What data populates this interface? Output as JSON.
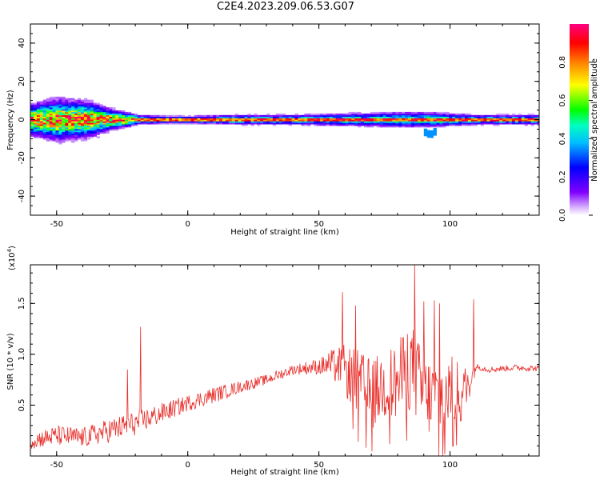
{
  "page": {
    "title": "C2E4.2023.209.06.53.G07"
  },
  "colorbar": {
    "label": "Normalized spectral amplitude",
    "ticks": [
      "0.0",
      "0.2",
      "0.4",
      "0.6",
      "0.8"
    ],
    "tick_values": [
      0.0,
      0.2,
      0.4,
      0.6,
      0.8
    ],
    "range": [
      0,
      1
    ],
    "colormap": "rainbow (purple → blue → cyan → green → yellow → red → magenta)"
  },
  "colors": {
    "snr_line": "#e8302c",
    "axis": "#000000"
  },
  "chart_data": [
    {
      "type": "heatmap",
      "title": "",
      "xlabel": "Height of straight line (km)",
      "ylabel": "Frequency (Hz)",
      "xlim": [
        -60,
        134
      ],
      "ylim": [
        -50,
        50
      ],
      "xticks": [
        -50,
        0,
        50,
        100
      ],
      "xtick_labels": [
        "-50",
        "0",
        "50",
        "100"
      ],
      "yticks": [
        -40,
        -20,
        0,
        20,
        40
      ],
      "ytick_labels": [
        "-40",
        "-20",
        "0",
        "20",
        "40"
      ],
      "description_points": {
        "x": [
          -60,
          -50,
          -40,
          -35,
          -30,
          -20,
          -10,
          0,
          20,
          40,
          60,
          80,
          92,
          100,
          110,
          120,
          134
        ],
        "spread_hz": [
          6,
          8,
          7,
          6,
          4,
          2,
          1.5,
          1.5,
          2,
          2,
          2.5,
          3,
          3,
          2.5,
          2,
          2,
          2
        ],
        "center_hz": [
          0,
          0,
          0,
          0,
          0,
          0,
          0,
          0,
          0,
          0,
          0,
          0,
          -8,
          0,
          0,
          0,
          0
        ]
      }
    },
    {
      "type": "line",
      "title": "",
      "xlabel": "Height of straight line (km)",
      "ylabel": "SNR (10 * v/v)",
      "yscale_label": "(x10",
      "yscale_exp": "4",
      "yscale_close": ")",
      "xlim": [
        -60,
        134
      ],
      "ylim": [
        0,
        1.88
      ],
      "xticks": [
        -50,
        0,
        50,
        100
      ],
      "xtick_labels": [
        "-50",
        "0",
        "50",
        "100"
      ],
      "yticks": [
        0.5,
        1.0,
        1.5
      ],
      "ytick_labels": [
        "0.5",
        "1.0",
        "1.5"
      ],
      "series": [
        {
          "x": [
            -60,
            -50,
            -40,
            -30,
            -20,
            -10,
            0,
            10,
            20,
            30,
            40,
            50,
            55,
            60,
            65,
            70,
            75,
            80,
            85,
            90,
            95,
            100,
            105,
            110,
            115,
            120,
            125,
            134
          ],
          "values": [
            0.15,
            0.2,
            0.18,
            0.25,
            0.32,
            0.42,
            0.52,
            0.6,
            0.68,
            0.75,
            0.85,
            0.88,
            0.9,
            0.85,
            0.7,
            0.6,
            0.7,
            0.72,
            0.9,
            0.6,
            0.55,
            0.65,
            0.6,
            0.88,
            0.85,
            0.86,
            0.87,
            0.86
          ],
          "noise": [
            0.08,
            0.1,
            0.1,
            0.12,
            0.12,
            0.1,
            0.08,
            0.08,
            0.06,
            0.05,
            0.05,
            0.08,
            0.15,
            0.25,
            0.35,
            0.35,
            0.35,
            0.4,
            0.45,
            0.4,
            0.4,
            0.35,
            0.3,
            0.03,
            0.03,
            0.03,
            0.03,
            0.03
          ],
          "spikes": [
            [
              -18,
              1.27
            ],
            [
              -23,
              0.85
            ],
            [
              59,
              1.61
            ],
            [
              64,
              1.48
            ],
            [
              86.6,
              1.88
            ],
            [
              90,
              1.52
            ],
            [
              94,
              1.53
            ],
            [
              96,
              1.5
            ],
            [
              109,
              1.54
            ]
          ]
        }
      ]
    }
  ]
}
